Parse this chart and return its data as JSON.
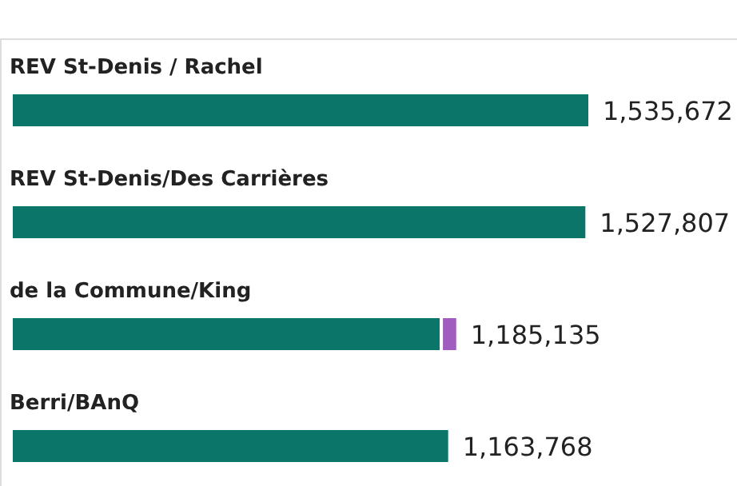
{
  "chart_data": {
    "type": "bar",
    "orientation": "horizontal",
    "stacked": true,
    "categories": [
      "REV St-Denis / Rachel",
      "REV St-Denis/Des Carrières",
      "de la Commune/King",
      "Berri/BAnQ"
    ],
    "series": [
      {
        "color": "#0a7568",
        "values": [
          1535672,
          1527807,
          1141335,
          1163768
        ],
        "value_labels": [
          "1,535,672",
          "1,527,807",
          null,
          "1,163,768"
        ]
      },
      {
        "color": "#a05cbf",
        "values": [
          null,
          null,
          43800,
          null
        ]
      }
    ],
    "totals": [
      null,
      null,
      "1,185,135",
      null
    ],
    "grid": false,
    "legend": false
  }
}
